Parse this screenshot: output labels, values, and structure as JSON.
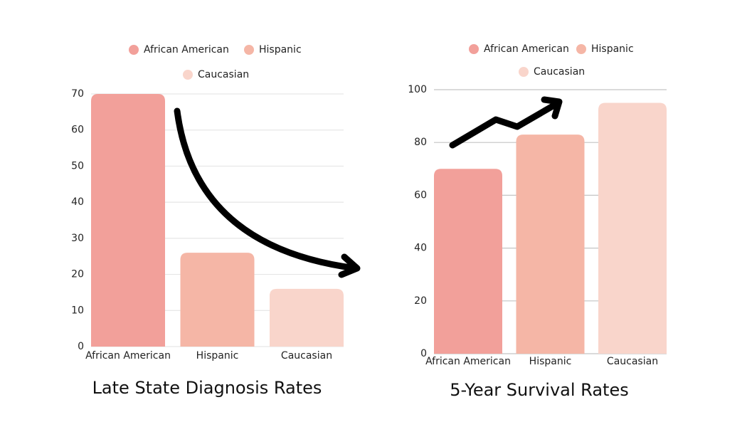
{
  "chart_data": [
    {
      "type": "bar",
      "title": "Late State Diagnosis Rates",
      "categories": [
        "African American",
        "Hispanic",
        "Caucasian"
      ],
      "values": [
        70,
        26,
        16
      ],
      "colors": [
        "#f2a09a",
        "#f5b6a6",
        "#f9d5cb"
      ],
      "ylim": [
        0,
        70
      ],
      "yticks": [
        0,
        10,
        20,
        30,
        40,
        50,
        60,
        70
      ],
      "grid": true,
      "grid_color": "#e6e6e6"
    },
    {
      "type": "bar",
      "title": "5-Year Survival Rates",
      "categories": [
        "African American",
        "Hispanic",
        "Caucasian"
      ],
      "values": [
        70,
        83,
        95
      ],
      "colors": [
        "#f2a09a",
        "#f5b6a6",
        "#f9d5cb"
      ],
      "ylim": [
        0,
        100
      ],
      "yticks": [
        0,
        20,
        40,
        60,
        80,
        100
      ],
      "grid": true,
      "grid_color": "#c4c4c4"
    }
  ]
}
